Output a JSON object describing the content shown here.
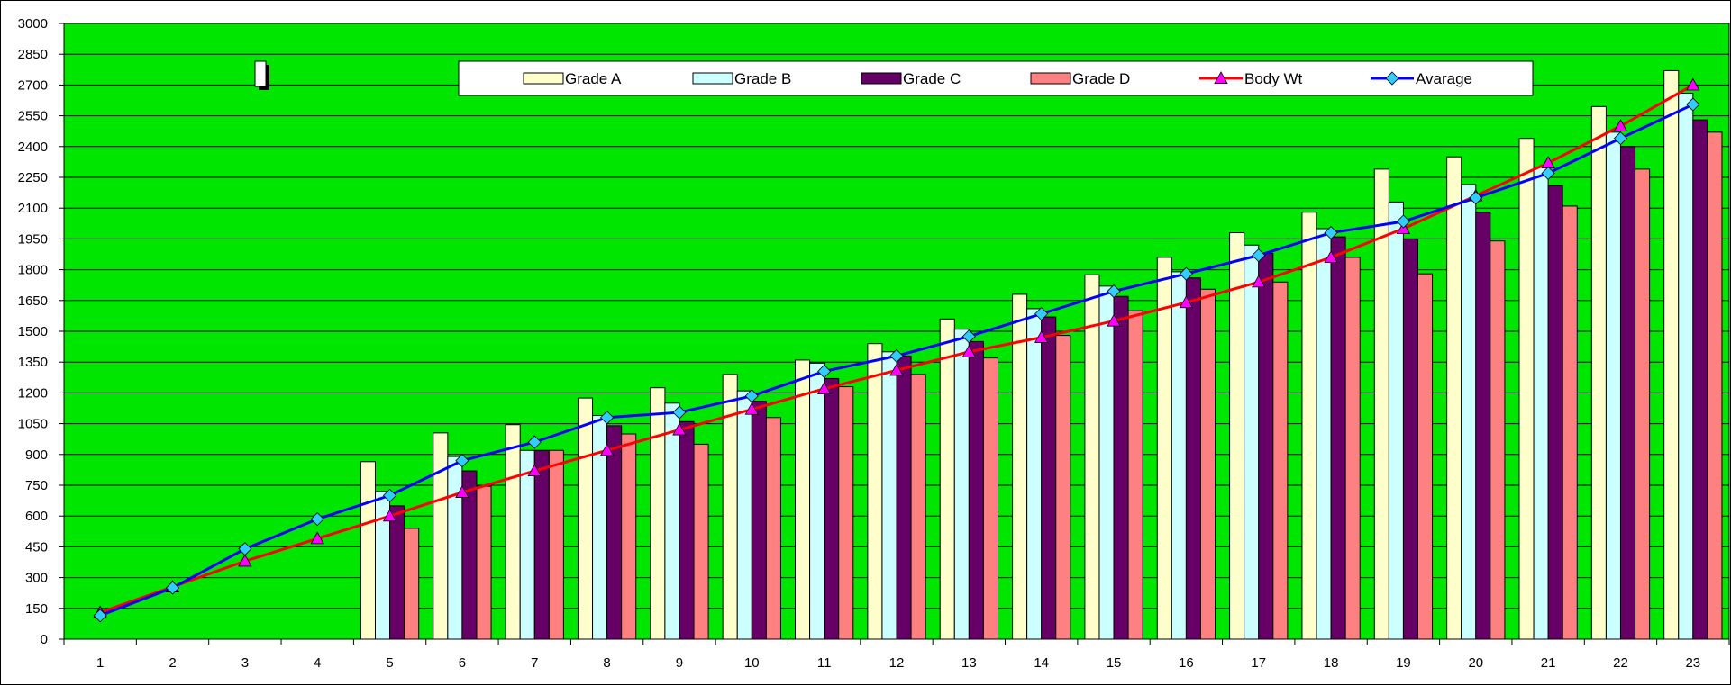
{
  "chart_data": {
    "type": "bar",
    "title": "",
    "xlabel": "",
    "ylabel": "",
    "categories": [
      "1",
      "2",
      "3",
      "4",
      "5",
      "6",
      "7",
      "8",
      "9",
      "10",
      "11",
      "12",
      "13",
      "14",
      "15",
      "16",
      "17",
      "18",
      "19",
      "20",
      "21",
      "22",
      "23"
    ],
    "ylim": [
      0,
      3000
    ],
    "yticks": [
      0,
      150,
      300,
      450,
      600,
      750,
      900,
      1050,
      1200,
      1350,
      1500,
      1650,
      1800,
      1950,
      2100,
      2250,
      2400,
      2550,
      2700,
      2850,
      3000
    ],
    "grid": true,
    "plot_background": "#00e600",
    "legend_position": "top",
    "bar_series": [
      {
        "name": "Grade A",
        "color": "#ffffcc",
        "values": [
          null,
          null,
          null,
          null,
          865,
          1005,
          1045,
          1175,
          1225,
          1290,
          1360,
          1440,
          1560,
          1680,
          1775,
          1860,
          1980,
          2080,
          2290,
          2350,
          2440,
          2595,
          2770
        ]
      },
      {
        "name": "Grade B",
        "color": "#ccffff",
        "values": [
          null,
          null,
          null,
          null,
          720,
          890,
          920,
          1090,
          1150,
          1210,
          1345,
          1400,
          1510,
          1610,
          1720,
          1790,
          1920,
          2000,
          2130,
          2215,
          2300,
          2470,
          2660
        ]
      },
      {
        "name": "Grade C",
        "color": "#660066",
        "values": [
          null,
          null,
          null,
          null,
          650,
          820,
          920,
          1040,
          1060,
          1160,
          1270,
          1380,
          1450,
          1570,
          1670,
          1760,
          1880,
          1960,
          1950,
          2080,
          2210,
          2400,
          2530
        ]
      },
      {
        "name": "Grade D",
        "color": "#ff8080",
        "values": [
          null,
          null,
          null,
          null,
          540,
          745,
          920,
          1000,
          950,
          1080,
          1230,
          1290,
          1370,
          1480,
          1600,
          1705,
          1740,
          1860,
          1780,
          1940,
          2110,
          2290,
          2470
        ]
      }
    ],
    "line_series": [
      {
        "name": "Body Wt",
        "color": "#ff0000",
        "marker": "triangle",
        "marker_color": "#ff00ff",
        "values": [
          130,
          255,
          380,
          490,
          600,
          715,
          820,
          920,
          1020,
          1120,
          1220,
          1310,
          1400,
          1470,
          1550,
          1640,
          1740,
          1860,
          2000,
          2160,
          2320,
          2500,
          2700
        ]
      },
      {
        "name": "Avarage",
        "color": "#0000ff",
        "marker": "diamond",
        "marker_color": "#33ccff",
        "values": [
          115,
          250,
          440,
          585,
          700,
          870,
          960,
          1080,
          1105,
          1185,
          1305,
          1380,
          1475,
          1585,
          1695,
          1780,
          1870,
          1980,
          2035,
          2150,
          2270,
          2440,
          2605
        ]
      }
    ]
  }
}
